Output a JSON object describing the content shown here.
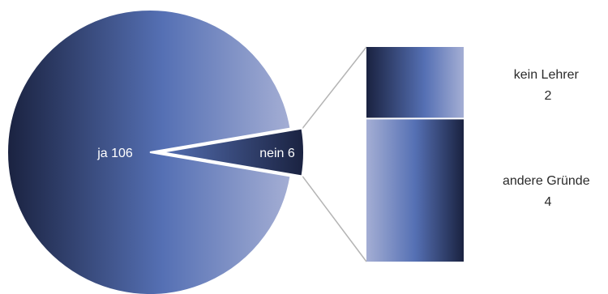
{
  "chart_data": {
    "type": "bar-of-pie",
    "pie": [
      {
        "label": "ja",
        "value": 106
      },
      {
        "label": "nein",
        "value": 6
      }
    ],
    "breakdown": [
      {
        "label": "kein Lehrer",
        "value": 2
      },
      {
        "label": "andere Gründe",
        "value": 4
      }
    ],
    "exploded_slice": "nein",
    "colors": {
      "dark": "#1a2240",
      "mid": "#5570b4",
      "light": "#a4aed4",
      "connector": "#b4b4b4",
      "label_on_dark": "#ffffff",
      "label_on_light": "#2a2a2a"
    }
  }
}
